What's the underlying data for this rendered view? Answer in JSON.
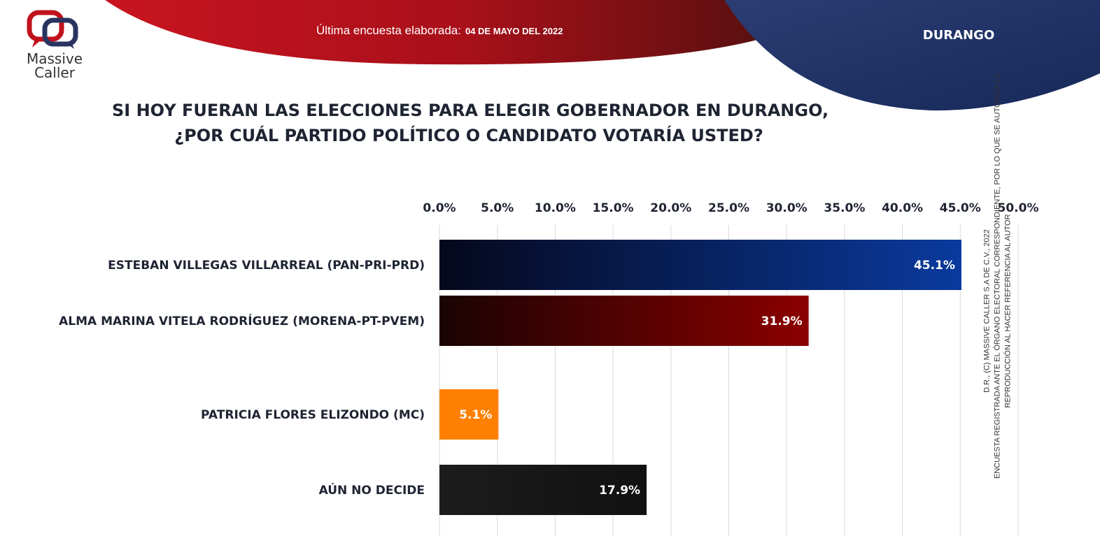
{
  "header": {
    "brand_line1": "Massive",
    "brand_line2": "Caller",
    "survey_label": "Última encuesta elaborada:",
    "survey_date": "04 DE MAYO DEL 2022",
    "state": "DURANGO"
  },
  "question": {
    "line1": "SI HOY FUERAN LAS ELECCIONES PARA ELEGIR GOBERNADOR EN DURANGO,",
    "line2": "¿POR CUÁL PARTIDO POLÍTICO O CANDIDATO VOTARÍA USTED?"
  },
  "side_note": {
    "line1": "D.R., (C) MASSIVE CALLER S.A DE C.V., 2022",
    "line2": "ENCUESTA REGISTRADA ANTE EL ÓRGANO ELECTORAL CORRESPONDIENTE, POR LO QUE SE AUTORIZA LA",
    "line3": "REPRODUCCIÓN AL HACER REFERENCIA AL AUTOR"
  },
  "colors": {
    "header_red": "#b5121b",
    "header_navy": "#1c2f5e",
    "series_blue": "#0a3a9e",
    "series_red": "#8b0000",
    "series_orange": "#ff8000",
    "series_black": "#1a1a1a"
  },
  "chart_data": {
    "type": "bar",
    "orientation": "horizontal",
    "categories": [
      "ESTEBAN VILLEGAS VILLARREAL (PAN-PRI-PRD)",
      "ALMA MARINA VITELA RODRÍGUEZ (MORENA-PT-PVEM)",
      "PATRICIA FLORES ELIZONDO (MC)",
      "AÚN NO DECIDE"
    ],
    "values": [
      45.1,
      31.9,
      5.1,
      17.9
    ],
    "value_labels": [
      "45.1%",
      "31.9%",
      "5.1%",
      "17.9%"
    ],
    "xlim": [
      0,
      50
    ],
    "x_ticks": [
      "0.0%",
      "5.0%",
      "10.0%",
      "15.0%",
      "20.0%",
      "25.0%",
      "30.0%",
      "35.0%",
      "40.0%",
      "45.0%",
      "50.0%"
    ],
    "axis_position": "top",
    "grid": true,
    "legend": "none"
  }
}
